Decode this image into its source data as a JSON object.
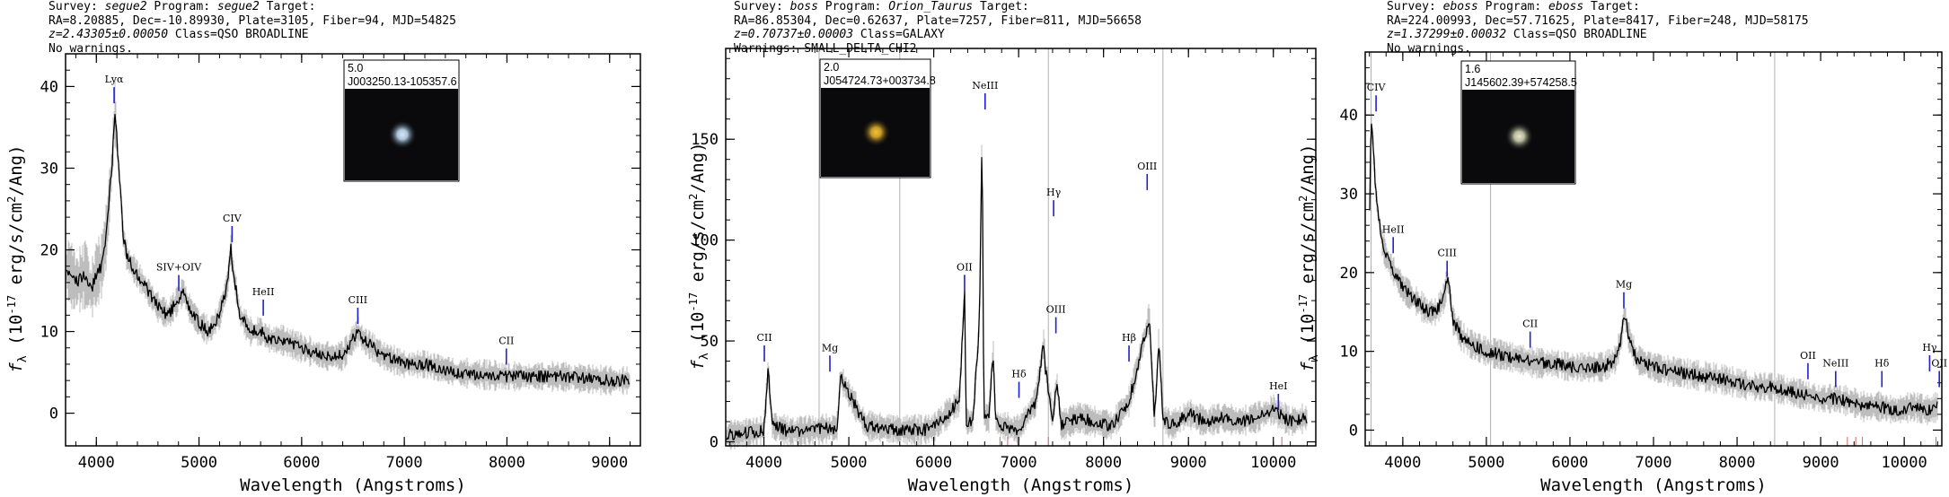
{
  "ylabel": "f",
  "ylabel_sub": "λ",
  "ylabel_rest": " (10",
  "ylabel_exp": "-17",
  "ylabel_end": " erg/s/cm",
  "ylabel_exp2": "2",
  "ylabel_tail": "/Ang)",
  "colors": {
    "spectrum": "#000000",
    "error": "#bdbdbd",
    "line_marker": "#1f1fd6",
    "masked": "#e06060"
  },
  "spectra": [
    {
      "header": {
        "survey_label": "Survey: ",
        "survey": "segue2",
        "program_label": " Program: ",
        "program": "segue2",
        "target_label": " Target:",
        "line2": "RA=8.20885, Dec=-10.89930, Plate=3105, Fiber=94, MJD=54825",
        "z_text": "z=2.43305±0.00050",
        "class_text": " Class=QSO BROADLINE",
        "line4": "No warnings."
      },
      "thumbnail": {
        "mag": "5.0",
        "name": "J003250.13-105357.6",
        "glow": "#a9c4dc",
        "core": "#dde6ee"
      },
      "chart_data": {
        "type": "line",
        "xlabel": "Wavelength (Angstroms)",
        "xlim": [
          3700,
          9300
        ],
        "ylim": [
          -4,
          44
        ],
        "xticks": [
          4000,
          5000,
          6000,
          7000,
          8000,
          9000
        ],
        "yticks": [
          0,
          10,
          20,
          30,
          40
        ],
        "series": [
          {
            "x": [
              3700,
              3800,
              3900,
              3950,
              4000,
              4050,
              4100,
              4150,
              4180,
              4220,
              4260,
              4300,
              4400,
              4500,
              4600,
              4700,
              4800,
              4850,
              4900,
              5000,
              5100,
              5200,
              5280,
              5310,
              5350,
              5400,
              5500,
              5600,
              5700,
              5800,
              6000,
              6200,
              6400,
              6500,
              6550,
              6600,
              6700,
              6800,
              7000,
              7200,
              7500,
              8000,
              8500,
              9000,
              9200
            ],
            "y": [
              18,
              16,
              17,
              15,
              17,
              18,
              22,
              30,
              37,
              30,
              22,
              19,
              17,
              15,
              13,
              12,
              14,
              15,
              13,
              11,
              10,
              12,
              16,
              20,
              16,
              12,
              10,
              10,
              9,
              9,
              8,
              7,
              7,
              9,
              10,
              9,
              8,
              7,
              6,
              6,
              5,
              4.5,
              4.5,
              4,
              4
            ]
          }
        ],
        "lines": [
          {
            "label": "Lyα",
            "x": 4173,
            "y": 37.5
          },
          {
            "label": "SIV+OIV",
            "x": 4803,
            "y": 14.5
          },
          {
            "label": "CIV",
            "x": 5322,
            "y": 20.5
          },
          {
            "label": "HeII",
            "x": 5626,
            "y": 11.5
          },
          {
            "label": "CIII",
            "x": 6547,
            "y": 10.5
          },
          {
            "label": "CII",
            "x": 7994,
            "y": 5.5
          }
        ],
        "vlines": [],
        "masked_x": []
      }
    },
    {
      "header": {
        "survey_label": "Survey: ",
        "survey": "boss",
        "program_label": " Program: ",
        "program": "Orion_Taurus",
        "target_label": " Target:",
        "line2": "RA=86.85304, Dec=0.62637, Plate=7257, Fiber=811, MJD=56658",
        "z_text": "z=0.70737±0.00003",
        "class_text": " Class=GALAXY",
        "line4": "Warnings: SMALL_DELTA_CHI2"
      },
      "thumbnail": {
        "mag": "2.0",
        "name": "J054724.73+003734.8",
        "glow": "#c89a2a",
        "core": "#f2c430"
      },
      "chart_data": {
        "type": "line",
        "xlabel": "Wavelength (Angstroms)",
        "xlim": [
          3550,
          10500
        ],
        "ylim": [
          -2,
          195
        ],
        "xticks": [
          4000,
          5000,
          6000,
          7000,
          8000,
          9000,
          10000
        ],
        "yticks": [
          0,
          50,
          100,
          150
        ],
        "series": [
          {
            "x": [
              3550,
              3700,
              3900,
              4000,
              4050,
              4100,
              4300,
              4600,
              4860,
              4900,
              5200,
              5600,
              5900,
              6000,
              6300,
              6365,
              6380,
              6460,
              6540,
              6570,
              6590,
              6650,
              6700,
              6730,
              6800,
              7000,
              7200,
              7300,
              7310,
              7400,
              7450,
              7500,
              7700,
              7900,
              8100,
              8300,
              8500,
              8540,
              8560,
              8600,
              8650,
              8700,
              8800,
              9000,
              9200,
              9400,
              9600,
              9800,
              10000,
              10200,
              10400
            ],
            "y": [
              3,
              4,
              5,
              6,
              36,
              8,
              5,
              6,
              7,
              32,
              8,
              6,
              6,
              7,
              20,
              75,
              10,
              10,
              60,
              160,
              12,
              12,
              45,
              10,
              8,
              6,
              20,
              50,
              38,
              12,
              30,
              8,
              12,
              10,
              8,
              20,
              55,
              62,
              45,
              10,
              50,
              12,
              8,
              14,
              10,
              12,
              10,
              12,
              16,
              10,
              12
            ]
          }
        ],
        "lines": [
          {
            "label": "CII",
            "x": 4005,
            "y": 38
          },
          {
            "label": "Mg",
            "x": 4777,
            "y": 33
          },
          {
            "label": "OII",
            "x": 6363,
            "y": 73
          },
          {
            "label": "NeIII",
            "x": 6605,
            "y": 163
          },
          {
            "label": "Hδ",
            "x": 7004,
            "y": 20
          },
          {
            "label": "Hγ",
            "x": 7412,
            "y": 110
          },
          {
            "label": "OIII",
            "x": 7439,
            "y": 52
          },
          {
            "label": "Hβ",
            "x": 8300,
            "y": 38
          },
          {
            "label": "OIII",
            "x": 8514,
            "y": 123
          },
          {
            "label": "HeI",
            "x": 10059,
            "y": 14
          }
        ],
        "vlines": [
          4650,
          5600,
          7350,
          8700
        ],
        "masked_x": [
          6780,
          6870,
          7350,
          8200,
          10100
        ]
      }
    },
    {
      "header": {
        "survey_label": "Survey: ",
        "survey": "eboss",
        "program_label": " Program: ",
        "program": "eboss",
        "target_label": " Target:",
        "line2": "RA=224.00993, Dec=57.71625, Plate=8417, Fiber=248, MJD=58175",
        "z_text": "z=1.37299±0.00032",
        "class_text": " Class=QSO BROADLINE",
        "line4": "No warnings."
      },
      "thumbnail": {
        "mag": "1.6",
        "name": "J145602.39+574258.5",
        "glow": "#b7bc9c",
        "core": "#e8e4c8"
      },
      "chart_data": {
        "type": "line",
        "xlabel": "Wavelength (Angstroms)",
        "xlim": [
          3550,
          10450
        ],
        "ylim": [
          -2,
          48
        ],
        "xticks": [
          4000,
          5000,
          6000,
          7000,
          8000,
          9000,
          10000
        ],
        "yticks": [
          0,
          10,
          20,
          30,
          40
        ],
        "series": [
          {
            "x": [
              3600,
              3620,
              3650,
              3680,
              3700,
              3750,
              3800,
              3900,
              4000,
              4100,
              4200,
              4300,
              4400,
              4450,
              4500,
              4530,
              4560,
              4600,
              4700,
              4800,
              5000,
              5200,
              5400,
              5600,
              5800,
              6000,
              6200,
              6400,
              6550,
              6620,
              6650,
              6700,
              6800,
              7000,
              7200,
              7500,
              7800,
              8000,
              8200,
              8400,
              8600,
              8800,
              9000,
              9200,
              9400,
              9500,
              9700,
              9900,
              10100,
              10300,
              10400
            ],
            "y": [
              26,
              40,
              35,
              30,
              28,
              24,
              22,
              20,
              18,
              17,
              16,
              15,
              15,
              16,
              17,
              19,
              18,
              14,
              12,
              11,
              10,
              9.5,
              9,
              8.5,
              8.5,
              8,
              8,
              8,
              9,
              12,
              15,
              12,
              9,
              8,
              7.5,
              7,
              6.5,
              6,
              5.5,
              5.5,
              5,
              4.5,
              4,
              4,
              3.5,
              3,
              3,
              2.5,
              3,
              2.5,
              3
            ]
          }
        ],
        "lines": [
          {
            "label": "CIV",
            "x": 3680,
            "y": 40
          },
          {
            "label": "HeII",
            "x": 3885,
            "y": 22
          },
          {
            "label": "CIII",
            "x": 4530,
            "y": 19
          },
          {
            "label": "CII",
            "x": 5524,
            "y": 10
          },
          {
            "label": "Mg",
            "x": 6645,
            "y": 15
          },
          {
            "label": "OII",
            "x": 8848,
            "y": 6
          },
          {
            "label": "NeIII",
            "x": 9180,
            "y": 5
          },
          {
            "label": "Hδ",
            "x": 9733,
            "y": 5
          },
          {
            "label": "Hγ",
            "x": 10304,
            "y": 7
          },
          {
            "label": "OII",
            "x": 10420,
            "y": 5
          }
        ],
        "vlines": [
          3620,
          5050,
          8450
        ],
        "masked_x": [
          9320,
          9420,
          9500,
          10380
        ]
      }
    }
  ]
}
